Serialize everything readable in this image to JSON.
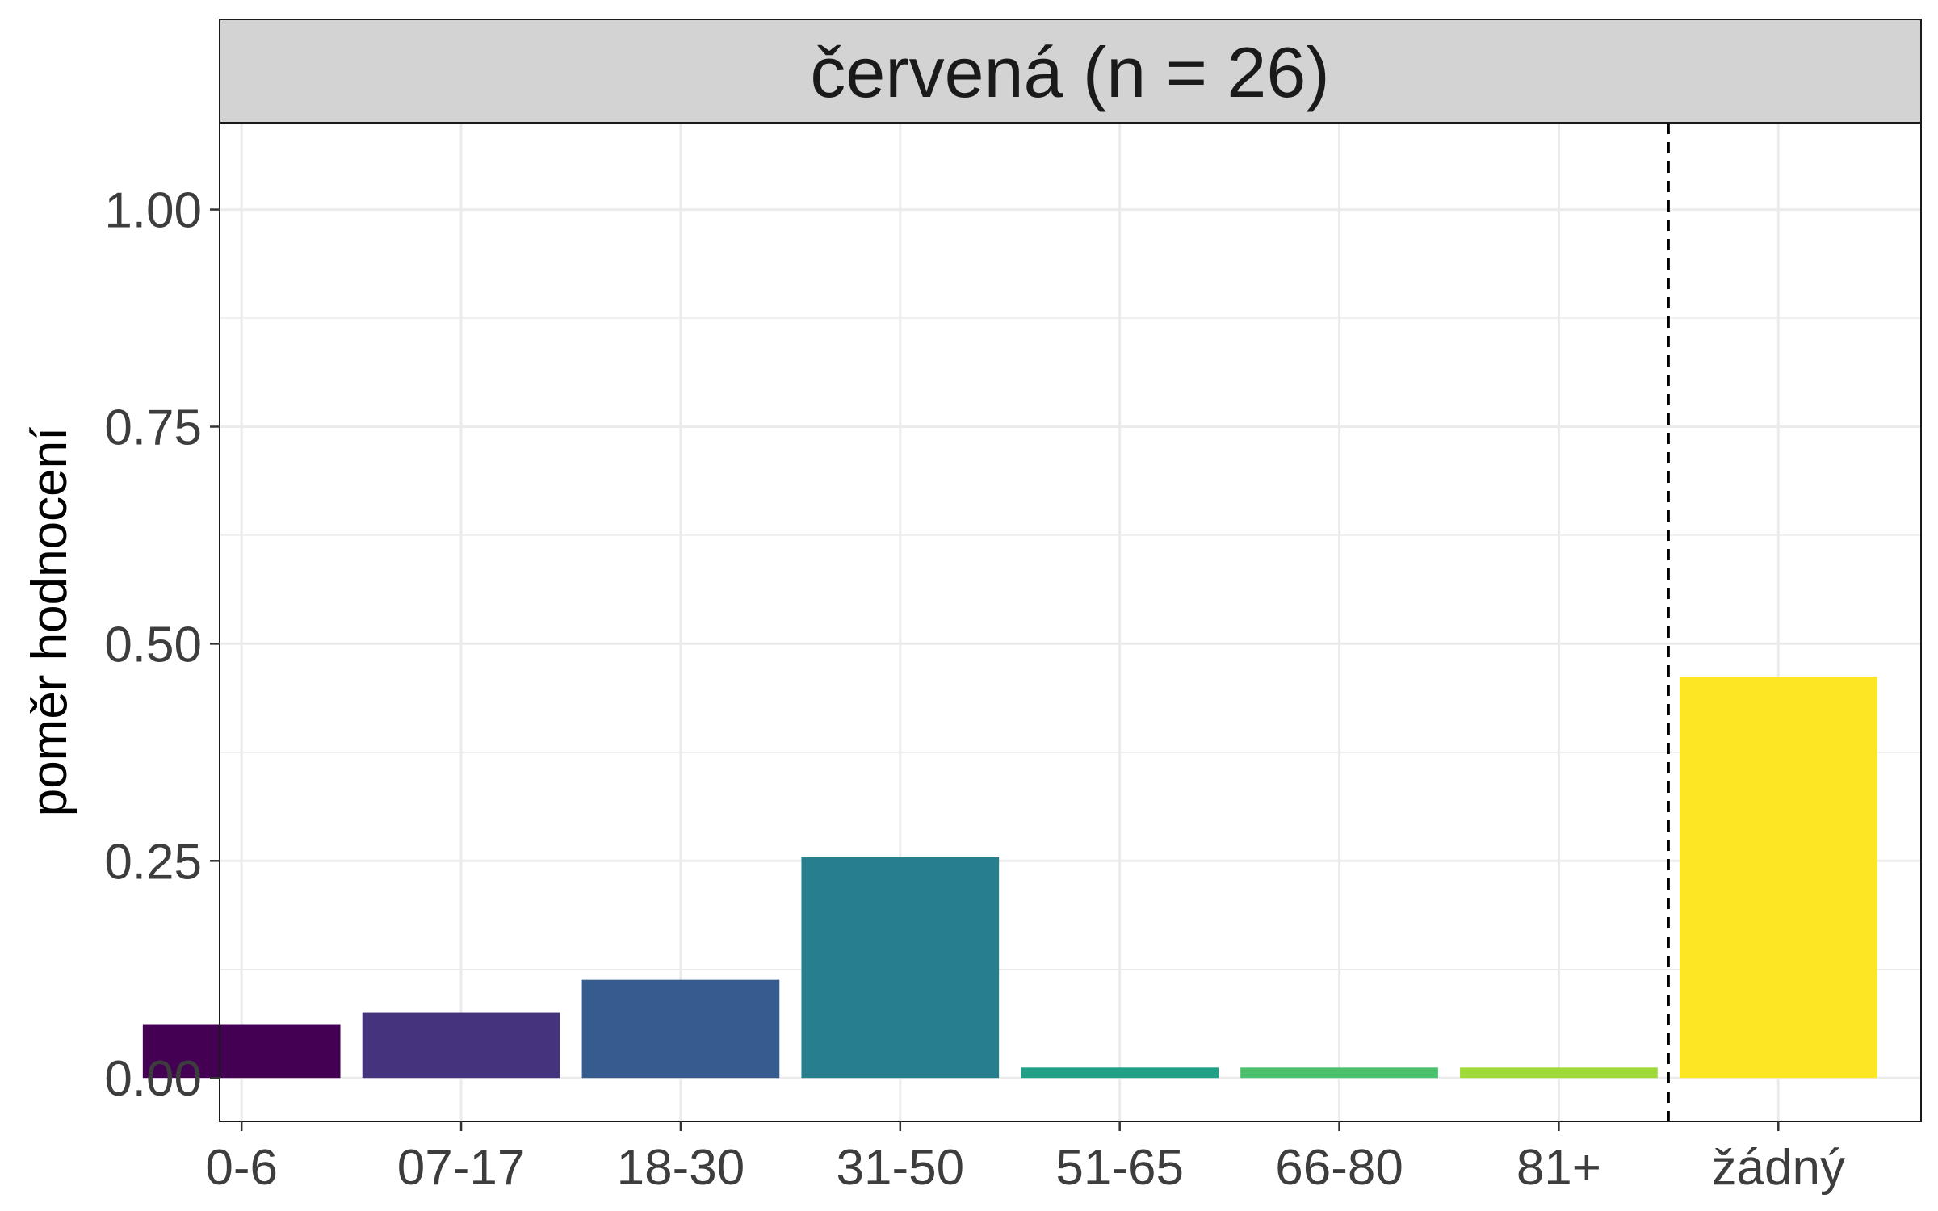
{
  "chart_data": {
    "type": "bar",
    "panel_title": "červená (n = 26)",
    "ylabel": "poměr hodnocení",
    "xlabel": "",
    "categories": [
      "0-6",
      "07-17",
      "18-30",
      "31-50",
      "51-65",
      "66-80",
      "81+",
      "žádný"
    ],
    "values": [
      0.062,
      0.075,
      0.113,
      0.254,
      0.012,
      0.012,
      0.012,
      0.462
    ],
    "colors": [
      "#440154",
      "#46337E",
      "#365C8D",
      "#277F8E",
      "#1FA187",
      "#4AC16D",
      "#A0DA39",
      "#FDE725"
    ],
    "ylim": [
      -0.05,
      1.1
    ],
    "yticks": [
      0.0,
      0.25,
      0.5,
      0.75,
      1.0
    ],
    "ytick_labels": [
      "0.00",
      "0.25",
      "0.50",
      "0.75",
      "1.00"
    ],
    "separator_after_category": "81+",
    "grid": true,
    "legend": "none"
  }
}
